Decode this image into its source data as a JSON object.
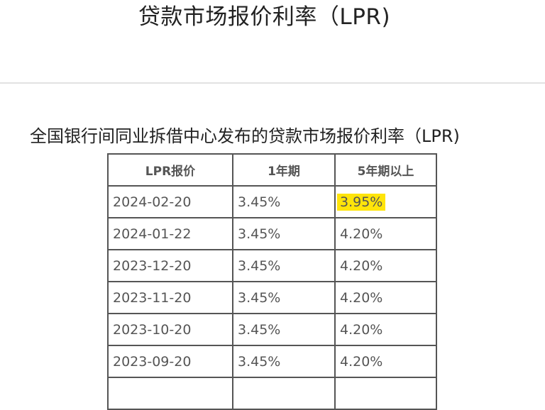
{
  "page": {
    "title": "贷款市场报价利率（LPR)"
  },
  "section": {
    "title": "全国银行间同业拆借中心发布的贷款市场报价利率（LPR)"
  },
  "table": {
    "headers": [
      "LPR报价",
      "1年期",
      "5年期以上"
    ],
    "rows": [
      {
        "date": "2024-02-20",
        "one_year": "3.45%",
        "five_year": "3.95%",
        "five_year_highlighted": true
      },
      {
        "date": "2024-01-22",
        "one_year": "3.45%",
        "five_year": "4.20%"
      },
      {
        "date": "2023-12-20",
        "one_year": "3.45%",
        "five_year": "4.20%"
      },
      {
        "date": "2023-11-20",
        "one_year": "3.45%",
        "five_year": "4.20%"
      },
      {
        "date": "2023-10-20",
        "one_year": "3.45%",
        "five_year": "4.20%"
      },
      {
        "date": "2023-09-20",
        "one_year": "3.45%",
        "five_year": "4.20%"
      }
    ]
  },
  "colors": {
    "highlight": "#ffe40a",
    "border": "#555555",
    "text": "#555555",
    "divider": "#e2e2e2"
  }
}
